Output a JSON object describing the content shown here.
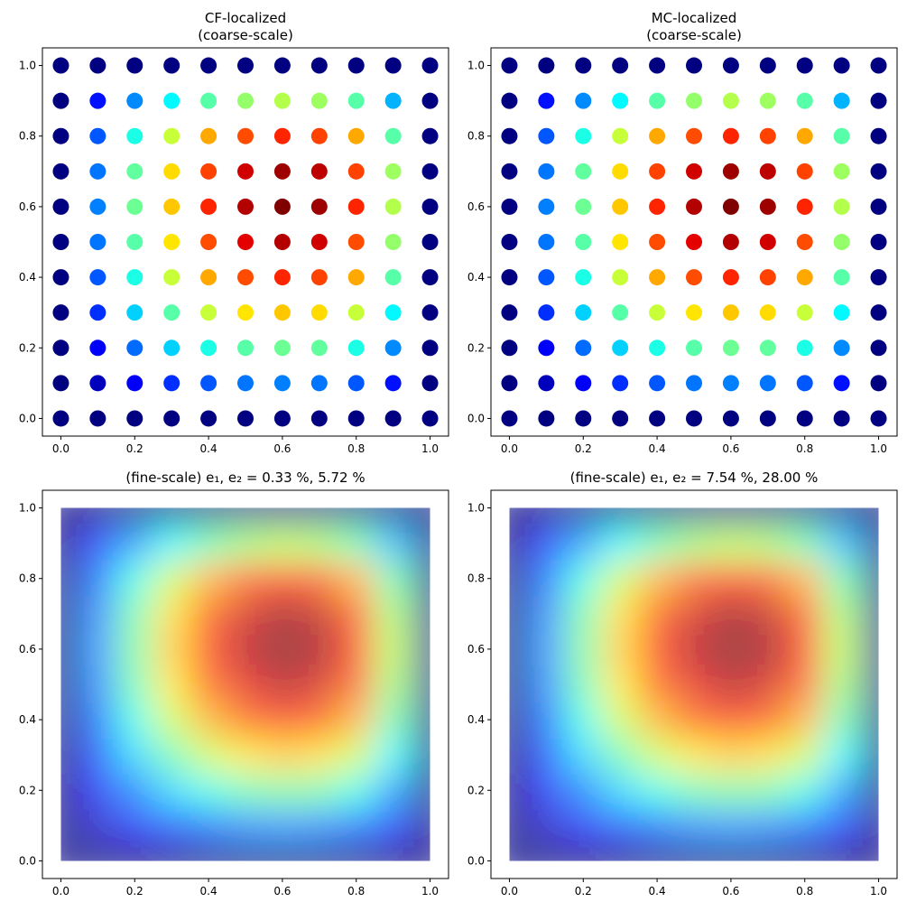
{
  "chart_data": [
    {
      "type": "scatter",
      "title": "CF-localized",
      "subtitle": "(coarse-scale)",
      "x": [
        0,
        0.1,
        0.2,
        0.3,
        0.4,
        0.5,
        0.6,
        0.7,
        0.8,
        0.9,
        1
      ],
      "y": [
        0,
        0.1,
        0.2,
        0.3,
        0.4,
        0.5,
        0.6,
        0.7,
        0.8,
        0.9,
        1
      ],
      "z": [
        [
          0,
          0,
          0,
          0,
          0,
          0,
          0,
          0,
          0,
          0,
          0
        ],
        [
          0,
          0.06,
          0.12,
          0.17,
          0.21,
          0.24,
          0.25,
          0.24,
          0.21,
          0.14,
          0
        ],
        [
          0,
          0.12,
          0.23,
          0.33,
          0.4,
          0.46,
          0.48,
          0.47,
          0.4,
          0.26,
          0
        ],
        [
          0,
          0.17,
          0.33,
          0.46,
          0.57,
          0.65,
          0.68,
          0.66,
          0.57,
          0.37,
          0
        ],
        [
          0,
          0.21,
          0.4,
          0.57,
          0.71,
          0.8,
          0.84,
          0.81,
          0.71,
          0.46,
          0
        ],
        [
          0,
          0.24,
          0.46,
          0.65,
          0.8,
          0.9,
          0.95,
          0.92,
          0.8,
          0.52,
          0
        ],
        [
          0,
          0.25,
          0.48,
          0.68,
          0.84,
          0.95,
          1,
          0.97,
          0.84,
          0.55,
          0
        ],
        [
          0,
          0.24,
          0.47,
          0.66,
          0.81,
          0.92,
          0.97,
          0.94,
          0.81,
          0.53,
          0
        ],
        [
          0,
          0.21,
          0.4,
          0.57,
          0.71,
          0.8,
          0.84,
          0.81,
          0.71,
          0.46,
          0
        ],
        [
          0,
          0.14,
          0.26,
          0.37,
          0.46,
          0.52,
          0.55,
          0.53,
          0.46,
          0.3,
          0
        ],
        [
          0,
          0,
          0,
          0,
          0,
          0,
          0,
          0,
          0,
          0,
          0
        ]
      ],
      "colormap": "jet",
      "xlim": [
        -0.05,
        1.05
      ],
      "ylim": [
        -0.05,
        1.05
      ],
      "xticks": [
        {
          "value": 0,
          "label": "0.0"
        },
        {
          "value": 0.2,
          "label": "0.2"
        },
        {
          "value": 0.4,
          "label": "0.4"
        },
        {
          "value": 0.6,
          "label": "0.6"
        },
        {
          "value": 0.8,
          "label": "0.8"
        },
        {
          "value": 1,
          "label": "1.0"
        }
      ],
      "yticks": [
        {
          "value": 0,
          "label": "0.0"
        },
        {
          "value": 0.2,
          "label": "0.2"
        },
        {
          "value": 0.4,
          "label": "0.4"
        },
        {
          "value": 0.6,
          "label": "0.6"
        },
        {
          "value": 0.8,
          "label": "0.8"
        },
        {
          "value": 1,
          "label": "1.0"
        }
      ]
    },
    {
      "type": "scatter",
      "title": "MC-localized",
      "subtitle": "(coarse-scale)",
      "x": [
        0,
        0.1,
        0.2,
        0.3,
        0.4,
        0.5,
        0.6,
        0.7,
        0.8,
        0.9,
        1
      ],
      "y": [
        0,
        0.1,
        0.2,
        0.3,
        0.4,
        0.5,
        0.6,
        0.7,
        0.8,
        0.9,
        1
      ],
      "z": [
        [
          0,
          0,
          0,
          0,
          0,
          0,
          0,
          0,
          0,
          0,
          0
        ],
        [
          0,
          0.06,
          0.12,
          0.17,
          0.21,
          0.24,
          0.25,
          0.24,
          0.21,
          0.14,
          0
        ],
        [
          0,
          0.12,
          0.23,
          0.33,
          0.4,
          0.46,
          0.48,
          0.47,
          0.4,
          0.26,
          0
        ],
        [
          0,
          0.17,
          0.33,
          0.46,
          0.57,
          0.65,
          0.68,
          0.66,
          0.57,
          0.37,
          0
        ],
        [
          0,
          0.21,
          0.4,
          0.57,
          0.71,
          0.8,
          0.84,
          0.81,
          0.71,
          0.46,
          0
        ],
        [
          0,
          0.24,
          0.46,
          0.65,
          0.8,
          0.9,
          0.95,
          0.92,
          0.8,
          0.52,
          0
        ],
        [
          0,
          0.25,
          0.48,
          0.68,
          0.84,
          0.95,
          1,
          0.97,
          0.84,
          0.55,
          0
        ],
        [
          0,
          0.24,
          0.47,
          0.66,
          0.81,
          0.92,
          0.97,
          0.94,
          0.81,
          0.53,
          0
        ],
        [
          0,
          0.21,
          0.4,
          0.57,
          0.71,
          0.8,
          0.84,
          0.81,
          0.71,
          0.46,
          0
        ],
        [
          0,
          0.14,
          0.26,
          0.37,
          0.46,
          0.52,
          0.55,
          0.53,
          0.46,
          0.3,
          0
        ],
        [
          0,
          0,
          0,
          0,
          0,
          0,
          0,
          0,
          0,
          0,
          0
        ]
      ],
      "colormap": "jet",
      "xlim": [
        -0.05,
        1.05
      ],
      "ylim": [
        -0.05,
        1.05
      ],
      "xticks": [
        {
          "value": 0,
          "label": "0.0"
        },
        {
          "value": 0.2,
          "label": "0.2"
        },
        {
          "value": 0.4,
          "label": "0.4"
        },
        {
          "value": 0.6,
          "label": "0.6"
        },
        {
          "value": 0.8,
          "label": "0.8"
        },
        {
          "value": 1,
          "label": "1.0"
        }
      ],
      "yticks": [
        {
          "value": 0,
          "label": "0.0"
        },
        {
          "value": 0.2,
          "label": "0.2"
        },
        {
          "value": 0.4,
          "label": "0.4"
        },
        {
          "value": 0.6,
          "label": "0.6"
        },
        {
          "value": 0.8,
          "label": "0.8"
        },
        {
          "value": 1,
          "label": "1.0"
        }
      ]
    },
    {
      "type": "heatmap",
      "title": "(fine-scale) e₁, e₂ = 0.33 %, 5.72 %",
      "x": [
        0,
        0.1,
        0.2,
        0.3,
        0.4,
        0.5,
        0.6,
        0.7,
        0.8,
        0.9,
        1
      ],
      "y": [
        0,
        0.1,
        0.2,
        0.3,
        0.4,
        0.5,
        0.6,
        0.7,
        0.8,
        0.9,
        1
      ],
      "z": [
        [
          0,
          0,
          0,
          0,
          0,
          0,
          0,
          0,
          0,
          0,
          0
        ],
        [
          0,
          0.06,
          0.12,
          0.17,
          0.21,
          0.24,
          0.25,
          0.24,
          0.21,
          0.14,
          0
        ],
        [
          0,
          0.12,
          0.23,
          0.33,
          0.4,
          0.46,
          0.48,
          0.47,
          0.4,
          0.26,
          0
        ],
        [
          0,
          0.17,
          0.33,
          0.46,
          0.57,
          0.65,
          0.68,
          0.66,
          0.57,
          0.37,
          0
        ],
        [
          0,
          0.21,
          0.4,
          0.57,
          0.71,
          0.8,
          0.84,
          0.81,
          0.71,
          0.46,
          0
        ],
        [
          0,
          0.24,
          0.46,
          0.65,
          0.8,
          0.9,
          0.95,
          0.92,
          0.8,
          0.52,
          0
        ],
        [
          0,
          0.25,
          0.48,
          0.68,
          0.84,
          0.95,
          1,
          0.97,
          0.84,
          0.55,
          0
        ],
        [
          0,
          0.24,
          0.47,
          0.66,
          0.81,
          0.92,
          0.97,
          0.94,
          0.81,
          0.53,
          0
        ],
        [
          0,
          0.21,
          0.4,
          0.57,
          0.71,
          0.8,
          0.84,
          0.81,
          0.71,
          0.46,
          0
        ],
        [
          0,
          0.14,
          0.26,
          0.37,
          0.46,
          0.52,
          0.55,
          0.53,
          0.46,
          0.3,
          0
        ],
        [
          0,
          0,
          0,
          0,
          0,
          0,
          0,
          0,
          0,
          0,
          0
        ]
      ],
      "colormap": "jet",
      "xlim": [
        -0.05,
        1.05
      ],
      "ylim": [
        -0.05,
        1.05
      ],
      "xticks": [
        {
          "value": 0,
          "label": "0.0"
        },
        {
          "value": 0.2,
          "label": "0.2"
        },
        {
          "value": 0.4,
          "label": "0.4"
        },
        {
          "value": 0.6,
          "label": "0.6"
        },
        {
          "value": 0.8,
          "label": "0.8"
        },
        {
          "value": 1,
          "label": "1.0"
        }
      ],
      "yticks": [
        {
          "value": 0,
          "label": "0.0"
        },
        {
          "value": 0.2,
          "label": "0.2"
        },
        {
          "value": 0.4,
          "label": "0.4"
        },
        {
          "value": 0.6,
          "label": "0.6"
        },
        {
          "value": 0.8,
          "label": "0.8"
        },
        {
          "value": 1,
          "label": "1.0"
        }
      ]
    },
    {
      "type": "heatmap",
      "title": "(fine-scale) e₁, e₂ = 7.54 %, 28.00 %",
      "x": [
        0,
        0.1,
        0.2,
        0.3,
        0.4,
        0.5,
        0.6,
        0.7,
        0.8,
        0.9,
        1
      ],
      "y": [
        0,
        0.1,
        0.2,
        0.3,
        0.4,
        0.5,
        0.6,
        0.7,
        0.8,
        0.9,
        1
      ],
      "z": [
        [
          0,
          0,
          0,
          0,
          0,
          0,
          0,
          0,
          0,
          0,
          0
        ],
        [
          0,
          0.06,
          0.12,
          0.17,
          0.21,
          0.24,
          0.25,
          0.24,
          0.21,
          0.14,
          0
        ],
        [
          0,
          0.12,
          0.23,
          0.33,
          0.4,
          0.46,
          0.48,
          0.47,
          0.4,
          0.26,
          0
        ],
        [
          0,
          0.17,
          0.33,
          0.46,
          0.57,
          0.65,
          0.68,
          0.66,
          0.57,
          0.37,
          0
        ],
        [
          0,
          0.21,
          0.4,
          0.57,
          0.71,
          0.8,
          0.84,
          0.81,
          0.71,
          0.46,
          0
        ],
        [
          0,
          0.24,
          0.46,
          0.65,
          0.8,
          0.9,
          0.95,
          0.92,
          0.8,
          0.52,
          0
        ],
        [
          0,
          0.25,
          0.48,
          0.68,
          0.84,
          0.95,
          1,
          0.97,
          0.84,
          0.55,
          0
        ],
        [
          0,
          0.24,
          0.47,
          0.66,
          0.81,
          0.92,
          0.97,
          0.94,
          0.81,
          0.53,
          0
        ],
        [
          0,
          0.21,
          0.4,
          0.57,
          0.71,
          0.8,
          0.84,
          0.81,
          0.71,
          0.46,
          0
        ],
        [
          0,
          0.14,
          0.26,
          0.37,
          0.46,
          0.52,
          0.55,
          0.53,
          0.46,
          0.3,
          0
        ],
        [
          0,
          0,
          0,
          0,
          0,
          0,
          0,
          0,
          0,
          0,
          0
        ]
      ],
      "colormap": "jet",
      "xlim": [
        -0.05,
        1.05
      ],
      "ylim": [
        -0.05,
        1.05
      ],
      "xticks": [
        {
          "value": 0,
          "label": "0.0"
        },
        {
          "value": 0.2,
          "label": "0.2"
        },
        {
          "value": 0.4,
          "label": "0.4"
        },
        {
          "value": 0.6,
          "label": "0.6"
        },
        {
          "value": 0.8,
          "label": "0.8"
        },
        {
          "value": 1,
          "label": "1.0"
        }
      ],
      "yticks": [
        {
          "value": 0,
          "label": "0.0"
        },
        {
          "value": 0.2,
          "label": "0.2"
        },
        {
          "value": 0.4,
          "label": "0.4"
        },
        {
          "value": 0.6,
          "label": "0.6"
        },
        {
          "value": 0.8,
          "label": "0.8"
        },
        {
          "value": 1,
          "label": "1.0"
        }
      ]
    }
  ]
}
